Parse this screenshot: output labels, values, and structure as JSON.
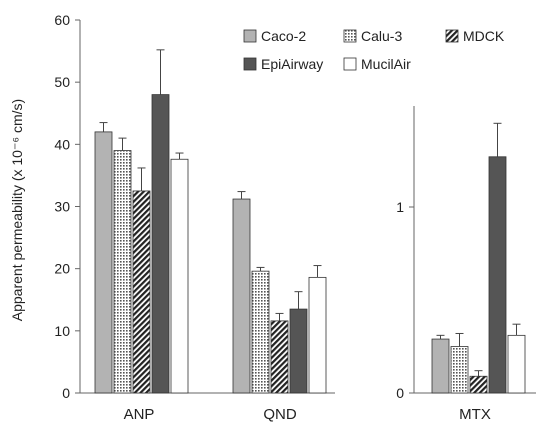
{
  "chart_data": [
    {
      "type": "bar",
      "panel": "left",
      "categories": [
        "ANP",
        "QND"
      ],
      "ylabel": "Apparent permeability",
      "ylabel_unit": "(x 10⁻⁶ cm/s)",
      "ylim": [
        0,
        60
      ],
      "yticks": [
        0,
        10,
        20,
        30,
        40,
        50,
        60
      ],
      "series": [
        {
          "name": "Caco-2",
          "values": [
            42.0,
            31.2
          ],
          "errors": [
            1.5,
            1.2
          ]
        },
        {
          "name": "Calu-3",
          "values": [
            39.0,
            19.6
          ],
          "errors": [
            2.0,
            0.6
          ]
        },
        {
          "name": "MDCK",
          "values": [
            32.5,
            11.6
          ],
          "errors": [
            3.7,
            1.2
          ]
        },
        {
          "name": "EpiAirway",
          "values": [
            48.0,
            13.5
          ],
          "errors": [
            7.2,
            2.8
          ]
        },
        {
          "name": "MucilAir",
          "values": [
            37.6,
            18.6
          ],
          "errors": [
            1.0,
            1.9
          ]
        }
      ]
    },
    {
      "type": "bar",
      "panel": "right",
      "categories": [
        "MTX"
      ],
      "ylim": [
        0,
        1.5
      ],
      "yticks": [
        0,
        1
      ],
      "series": [
        {
          "name": "Caco-2",
          "values": [
            0.29
          ],
          "errors": [
            0.02
          ]
        },
        {
          "name": "Calu-3",
          "values": [
            0.25
          ],
          "errors": [
            0.07
          ]
        },
        {
          "name": "MDCK",
          "values": [
            0.09
          ],
          "errors": [
            0.03
          ]
        },
        {
          "name": "EpiAirway",
          "values": [
            1.27
          ],
          "errors": [
            0.18
          ]
        },
        {
          "name": "MucilAir",
          "values": [
            0.31
          ],
          "errors": [
            0.06
          ]
        }
      ]
    }
  ],
  "legend": [
    "Caco-2",
    "Calu-3",
    "MDCK",
    "EpiAirway",
    "MucilAir"
  ],
  "styles": {
    "Caco-2": {
      "fill": "#b3b3b3",
      "pattern": "solid"
    },
    "Calu-3": {
      "fill": "#ffffff",
      "pattern": "dots"
    },
    "MDCK": {
      "fill": "#ffffff",
      "pattern": "hatch"
    },
    "EpiAirway": {
      "fill": "#555555",
      "pattern": "solid"
    },
    "MucilAir": {
      "fill": "#ffffff",
      "pattern": "solid"
    }
  }
}
